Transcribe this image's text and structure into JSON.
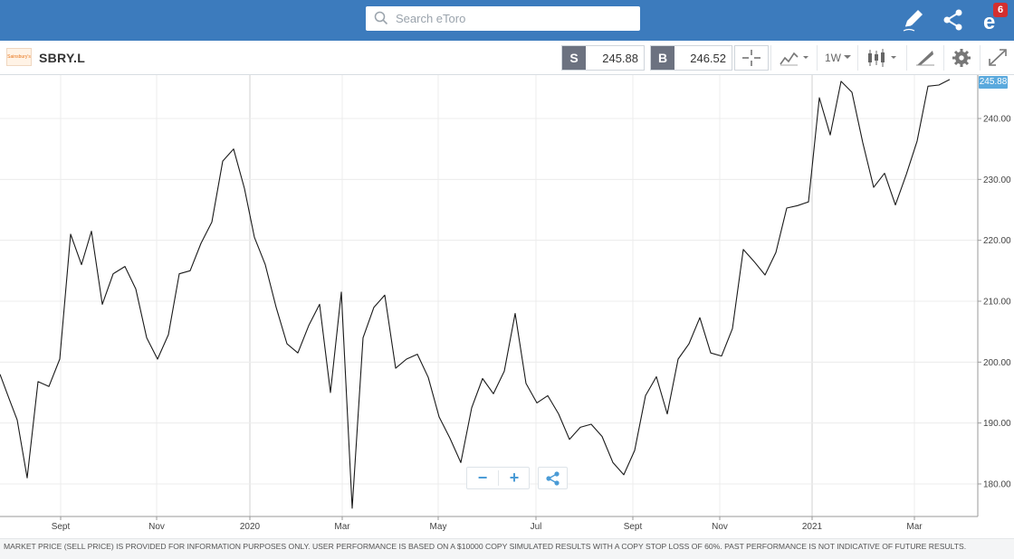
{
  "header": {
    "search_placeholder": "Search eToro",
    "notification_count": "6",
    "icons": [
      "edit-icon",
      "share-icon",
      "notifications-icon"
    ]
  },
  "instrument": {
    "logo_text": "Sainsbury's",
    "symbol": "SBRY.L",
    "sell_label": "S",
    "sell_price": "245.88",
    "buy_label": "B",
    "buy_price": "246.52",
    "timeframe": "1W",
    "tools": [
      "crosshair-icon",
      "chart-type-icon",
      "timeframe-dropdown",
      "candlestick-icon",
      "drawing-icon",
      "settings-icon",
      "fullscreen-icon"
    ]
  },
  "chart_data": {
    "type": "line",
    "title": "",
    "xlabel": "",
    "ylabel": "",
    "ylim": [
      175,
      246
    ],
    "y_ticks": [
      "180.00",
      "190.00",
      "200.00",
      "210.00",
      "220.00",
      "230.00",
      "240.00"
    ],
    "y_tick_values": [
      180,
      190,
      200,
      210,
      220,
      230,
      240
    ],
    "x_ticks": [
      "Sept",
      "Nov",
      "2020",
      "Mar",
      "May",
      "Jul",
      "Sept",
      "Nov",
      "2021",
      "Mar"
    ],
    "current_price_label": "245.88",
    "grid": true,
    "line_color": "#1a1a1a",
    "series": [
      {
        "points": [
          [
            0,
            198
          ],
          [
            10,
            194
          ],
          [
            19,
            190.5
          ],
          [
            30,
            181
          ],
          [
            42,
            196.8
          ],
          [
            54,
            196
          ],
          [
            66,
            200.5
          ],
          [
            78,
            221
          ],
          [
            90,
            216
          ],
          [
            101,
            221.5
          ],
          [
            113,
            209.5
          ],
          [
            125,
            214.5
          ],
          [
            138,
            215.7
          ],
          [
            150,
            212
          ],
          [
            162,
            204
          ],
          [
            174,
            200.5
          ],
          [
            186,
            204.5
          ],
          [
            198,
            214.5
          ],
          [
            210,
            215
          ],
          [
            222,
            219.5
          ],
          [
            234,
            223
          ],
          [
            246,
            233
          ],
          [
            258,
            235
          ],
          [
            270,
            228.5
          ],
          [
            281,
            220.5
          ],
          [
            293,
            216
          ],
          [
            305,
            209
          ],
          [
            317,
            203
          ],
          [
            329,
            201.5
          ],
          [
            341,
            206
          ],
          [
            353,
            209.5
          ],
          [
            365,
            195
          ],
          [
            377,
            211.5
          ],
          [
            389,
            176
          ],
          [
            401,
            204
          ],
          [
            413,
            209
          ],
          [
            425,
            211
          ],
          [
            437,
            199
          ],
          [
            449,
            200.5
          ],
          [
            461,
            201.3
          ],
          [
            473,
            197.5
          ],
          [
            485,
            191
          ],
          [
            497,
            187.5
          ],
          [
            509,
            183.5
          ],
          [
            521,
            192.5
          ],
          [
            533,
            197.3
          ],
          [
            545,
            194.8
          ],
          [
            557,
            198.5
          ],
          [
            569,
            208
          ],
          [
            581,
            196.5
          ],
          [
            593,
            193.3
          ],
          [
            605,
            194.5
          ],
          [
            617,
            191.5
          ],
          [
            629,
            187.3
          ],
          [
            641,
            189.3
          ],
          [
            653,
            189.8
          ],
          [
            665,
            187.8
          ],
          [
            677,
            183.5
          ],
          [
            689,
            181.5
          ],
          [
            701,
            185.5
          ],
          [
            713,
            194.5
          ],
          [
            725,
            197.6
          ],
          [
            737,
            191.5
          ],
          [
            749,
            200.5
          ],
          [
            761,
            203
          ],
          [
            773,
            207.3
          ],
          [
            785,
            201.5
          ],
          [
            797,
            201
          ],
          [
            809,
            205.5
          ],
          [
            821,
            218.5
          ],
          [
            833,
            216.5
          ],
          [
            845,
            214.3
          ],
          [
            857,
            218
          ],
          [
            869,
            225.3
          ],
          [
            881,
            225.7
          ],
          [
            893,
            226.3
          ],
          [
            905,
            243.4
          ],
          [
            917,
            237.3
          ],
          [
            929,
            246.1
          ],
          [
            941,
            244.3
          ],
          [
            953,
            236
          ],
          [
            965,
            228.7
          ],
          [
            977,
            231
          ],
          [
            989,
            225.8
          ],
          [
            1001,
            230.8
          ],
          [
            1013,
            236.3
          ],
          [
            1025,
            245.3
          ],
          [
            1037,
            245.5
          ],
          [
            1049,
            246.4
          ]
        ]
      }
    ]
  },
  "controls": {
    "zoom_out": "−",
    "zoom_in": "+"
  },
  "disclaimer": "MARKET PRICE (SELL PRICE) IS PROVIDED FOR INFORMATION PURPOSES ONLY. USER PERFORMANCE IS BASED ON A $10000 COPY SIMULATED RESULTS WITH A COPY STOP LOSS OF 60%. PAST PERFORMANCE IS NOT INDICATIVE OF FUTURE RESULTS."
}
